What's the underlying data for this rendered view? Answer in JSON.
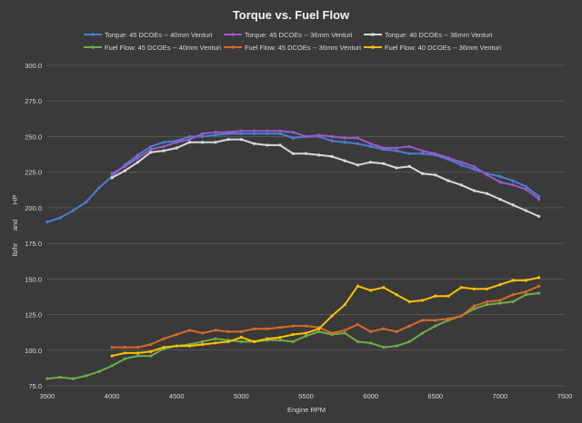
{
  "chart_data": {
    "type": "line",
    "title": "Torque vs. Fuel Flow",
    "xlabel": "Engine RPM",
    "ylabel_parts": [
      "lb/hr",
      "and",
      "HP"
    ],
    "xlim": [
      3500,
      7500
    ],
    "ylim": [
      75,
      300
    ],
    "x_ticks": [
      3500,
      4000,
      4500,
      5000,
      5500,
      6000,
      6500,
      7000,
      7500
    ],
    "y_ticks": [
      75,
      100,
      125,
      150,
      175,
      200,
      225,
      250,
      275,
      300
    ],
    "x_tick_labels": [
      "3500",
      "4000",
      "4500",
      "5000",
      "5500",
      "6000",
      "6500",
      "7000",
      "7500"
    ],
    "y_tick_labels": [
      "75.0",
      "100.0",
      "125.0",
      "150.0",
      "175.0",
      "200.0",
      "225.0",
      "250.0",
      "275.0",
      "300.0"
    ],
    "grid": "horizontal",
    "legend_position": "top",
    "series": [
      {
        "name": "Torque: 45 DCOEs -- 40mm Venturi",
        "color": "#4a7fd4",
        "x": [
          3500,
          3600,
          3700,
          3800,
          3900,
          4000,
          4100,
          4200,
          4300,
          4400,
          4500,
          4600,
          4700,
          4800,
          4900,
          5000,
          5100,
          5200,
          5300,
          5400,
          5500,
          5600,
          5700,
          5800,
          5900,
          6000,
          6100,
          6200,
          6300,
          6400,
          6500,
          6600,
          6700,
          6800,
          6900,
          7000,
          7100,
          7200,
          7300
        ],
        "values": [
          190,
          193,
          198,
          204,
          214,
          222,
          230,
          237,
          243,
          246,
          247,
          250,
          250,
          251,
          252,
          252,
          252,
          252,
          252,
          249,
          250,
          250,
          247,
          246,
          245,
          243,
          241,
          240,
          238,
          238,
          237,
          234,
          230,
          227,
          224,
          222,
          219,
          215,
          208
        ]
      },
      {
        "name": "Torque: 45 DCOEs -- 36mm Venturi",
        "color": "#9b59d0",
        "x": [
          4000,
          4100,
          4200,
          4300,
          4400,
          4500,
          4600,
          4700,
          4800,
          4900,
          5000,
          5100,
          5200,
          5300,
          5400,
          5500,
          5600,
          5700,
          5800,
          5900,
          6000,
          6100,
          6200,
          6300,
          6400,
          6500,
          6600,
          6700,
          6800,
          6900,
          7000,
          7100,
          7200,
          7300
        ],
        "values": [
          224,
          229,
          235,
          241,
          243,
          246,
          248,
          252,
          253,
          253,
          254,
          254,
          254,
          254,
          253,
          250,
          251,
          250,
          249,
          249,
          245,
          242,
          242,
          243,
          240,
          238,
          235,
          232,
          229,
          223,
          218,
          216,
          213,
          206
        ]
      },
      {
        "name": "Torque: 40 DCOEs -- 36mm Venturi",
        "color": "#d9d9d9",
        "x": [
          4000,
          4100,
          4200,
          4300,
          4400,
          4500,
          4600,
          4700,
          4800,
          4900,
          5000,
          5100,
          5200,
          5300,
          5400,
          5500,
          5600,
          5700,
          5800,
          5900,
          6000,
          6100,
          6200,
          6300,
          6400,
          6500,
          6600,
          6700,
          6800,
          6900,
          7000,
          7100,
          7200,
          7300
        ],
        "values": [
          221,
          226,
          232,
          239,
          240,
          242,
          246,
          246,
          246,
          248,
          248,
          245,
          244,
          244,
          238,
          238,
          237,
          236,
          233,
          230,
          232,
          231,
          228,
          229,
          224,
          223,
          219,
          216,
          212,
          210,
          206,
          202,
          198,
          194
        ]
      },
      {
        "name": "Fuel Flow: 45 DCOEs -- 40mm Venturi",
        "color": "#70ad47",
        "x": [
          3500,
          3600,
          3700,
          3800,
          3900,
          4000,
          4100,
          4200,
          4300,
          4400,
          4500,
          4600,
          4700,
          4800,
          4900,
          5000,
          5100,
          5200,
          5300,
          5400,
          5500,
          5600,
          5700,
          5800,
          5900,
          6000,
          6100,
          6200,
          6300,
          6400,
          6500,
          6600,
          6700,
          6800,
          6900,
          7000,
          7100,
          7200,
          7300
        ],
        "values": [
          80,
          81,
          80,
          82,
          85,
          89,
          94,
          96,
          96,
          101,
          103,
          104,
          106,
          108,
          107,
          106,
          106,
          107,
          107,
          106,
          110,
          113,
          111,
          112,
          106,
          105,
          102,
          103,
          106,
          112,
          117,
          121,
          124,
          129,
          132,
          133,
          134,
          139,
          140
        ]
      },
      {
        "name": "Fuel Flow: 45 DCOEs -- 36mm Venturi",
        "color": "#d86a2a",
        "x": [
          4000,
          4100,
          4200,
          4300,
          4400,
          4500,
          4600,
          4700,
          4800,
          4900,
          5000,
          5100,
          5200,
          5300,
          5400,
          5500,
          5600,
          5700,
          5800,
          5900,
          6000,
          6100,
          6200,
          6300,
          6400,
          6500,
          6600,
          6700,
          6800,
          6900,
          7000,
          7100,
          7200,
          7300
        ],
        "values": [
          102,
          102,
          102,
          104,
          108,
          111,
          114,
          112,
          114,
          113,
          113,
          115,
          115,
          116,
          117,
          117,
          116,
          112,
          114,
          118,
          113,
          115,
          113,
          117,
          121,
          121,
          122,
          124,
          131,
          134,
          135,
          139,
          141,
          145
        ]
      },
      {
        "name": "Fuel Flow: 40 DCOEs -- 36mm Venturi",
        "color": "#ffc000",
        "x": [
          4000,
          4100,
          4200,
          4300,
          4400,
          4500,
          4600,
          4700,
          4800,
          4900,
          5000,
          5100,
          5200,
          5300,
          5400,
          5500,
          5600,
          5700,
          5800,
          5900,
          6000,
          6100,
          6200,
          6300,
          6400,
          6500,
          6600,
          6700,
          6800,
          6900,
          7000,
          7100,
          7200,
          7300
        ],
        "values": [
          96,
          98,
          98,
          99,
          102,
          103,
          103,
          104,
          105,
          106,
          109,
          106,
          108,
          109,
          111,
          112,
          115,
          124,
          132,
          145,
          142,
          144,
          139,
          134,
          135,
          138,
          138,
          144,
          143,
          143,
          146,
          149,
          149,
          151
        ]
      }
    ]
  }
}
